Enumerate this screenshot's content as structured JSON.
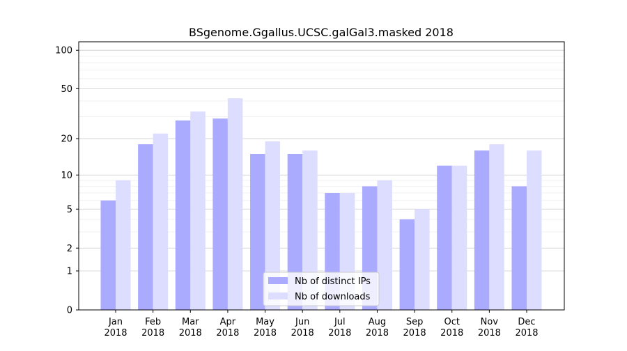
{
  "chart_data": {
    "type": "bar",
    "title": "BSgenome.Ggallus.UCSC.galGal3.masked 2018",
    "xlabel": "",
    "ylabel": "",
    "yscale": "symlog",
    "ylim": [
      0,
      110
    ],
    "yticks": [
      0,
      1,
      2,
      5,
      10,
      20,
      50,
      100
    ],
    "ytick_labels": [
      "0",
      "1",
      "2",
      "5",
      "10",
      "20",
      "50",
      "100"
    ],
    "categories": [
      "Jan\n2018",
      "Feb\n2018",
      "Mar\n2018",
      "Apr\n2018",
      "May\n2018",
      "Jun\n2018",
      "Jul\n2018",
      "Aug\n2018",
      "Sep\n2018",
      "Oct\n2018",
      "Nov\n2018",
      "Dec\n2018"
    ],
    "series": [
      {
        "name": "Nb of distinct IPs",
        "color": "#aaaaff",
        "values": [
          6,
          18,
          28,
          29,
          15,
          15,
          7,
          8,
          4,
          12,
          16,
          8
        ]
      },
      {
        "name": "Nb of downloads",
        "color": "#ddddff",
        "values": [
          9,
          22,
          33,
          42,
          19,
          16,
          7,
          9,
          5,
          12,
          18,
          16
        ]
      }
    ],
    "legend_position": "bottom-center",
    "grid": true
  }
}
